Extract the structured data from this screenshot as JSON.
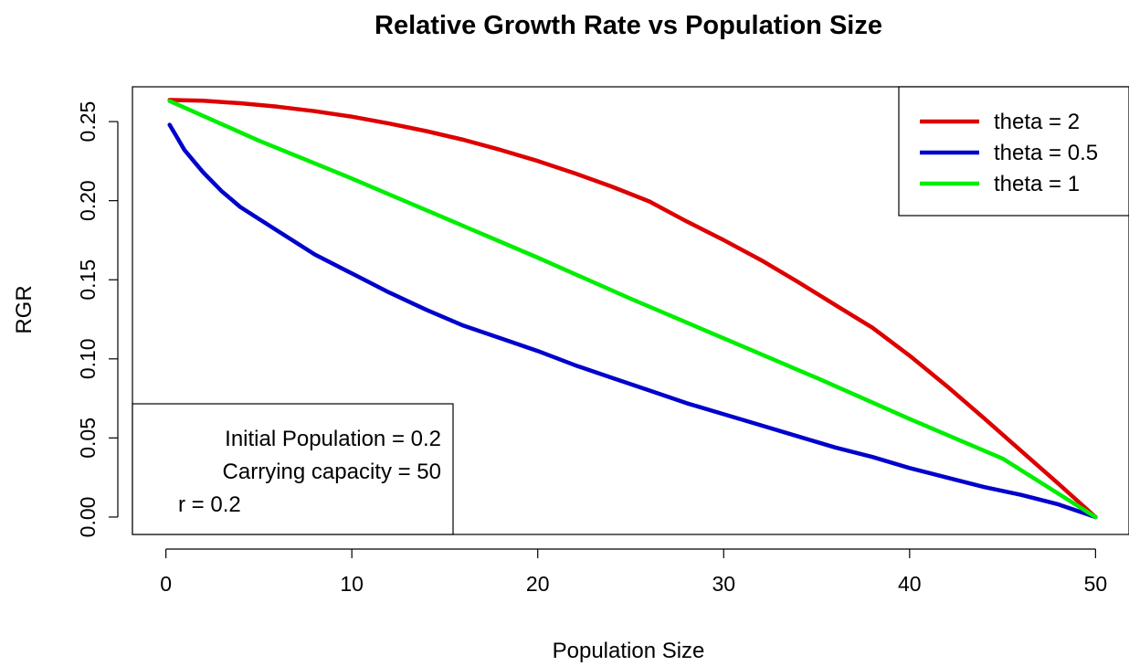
{
  "chart_data": {
    "type": "line",
    "title": "Relative Growth Rate vs Population Size",
    "xlabel": "Population Size",
    "ylabel": "RGR",
    "xlim": [
      -1.8,
      51.8
    ],
    "ylim": [
      -0.011,
      0.272
    ],
    "x_ticks": [
      0,
      10,
      20,
      30,
      40,
      50
    ],
    "x_tick_labels": [
      "0",
      "10",
      "20",
      "30",
      "40",
      "50"
    ],
    "y_ticks": [
      0.0,
      0.05,
      0.1,
      0.15,
      0.2,
      0.25
    ],
    "y_tick_labels": [
      "0.00",
      "0.05",
      "0.10",
      "0.15",
      "0.20",
      "0.25"
    ],
    "grid": false,
    "legend_position": "top-right",
    "series": [
      {
        "name": "theta = 2",
        "color": "#dd0000",
        "x": [
          0.2,
          2,
          4,
          6,
          8,
          10,
          12,
          14,
          16,
          18,
          20,
          22,
          24,
          26,
          28,
          30,
          32,
          34,
          36,
          38,
          40,
          42,
          44,
          46,
          48,
          50
        ],
        "y": [
          0.2637,
          0.2632,
          0.2616,
          0.2594,
          0.2566,
          0.2531,
          0.2488,
          0.244,
          0.2385,
          0.2321,
          0.2251,
          0.2173,
          0.2088,
          0.1995,
          0.1869,
          0.1751,
          0.1625,
          0.1486,
          0.1341,
          0.1197,
          0.102,
          0.0828,
          0.0625,
          0.0418,
          0.0211,
          0.0
        ]
      },
      {
        "name": "theta = 0.5",
        "color": "#0000cc",
        "x": [
          0.2,
          0.5,
          1,
          2,
          3,
          4,
          6,
          8,
          10,
          12,
          14,
          16,
          18,
          20,
          22,
          24,
          26,
          28,
          30,
          32,
          34,
          36,
          38,
          40,
          42,
          44,
          46,
          48,
          50
        ],
        "y": [
          0.248,
          0.242,
          0.232,
          0.218,
          0.206,
          0.196,
          0.181,
          0.166,
          0.154,
          0.142,
          0.131,
          0.121,
          0.113,
          0.105,
          0.096,
          0.088,
          0.08,
          0.072,
          0.065,
          0.058,
          0.051,
          0.044,
          0.038,
          0.031,
          0.025,
          0.019,
          0.014,
          0.008,
          0.0
        ]
      },
      {
        "name": "theta = 1",
        "color": "#00ee00",
        "x": [
          0.2,
          5,
          10,
          15,
          20,
          25,
          30,
          35,
          40,
          45,
          50
        ],
        "y": [
          0.263,
          0.238,
          0.214,
          0.189,
          0.164,
          0.138,
          0.113,
          0.088,
          0.062,
          0.037,
          0.0
        ]
      }
    ],
    "annotation_lines": [
      "Initial Population = 0.2",
      "Carrying capacity = 50",
      "r = 0.2"
    ]
  }
}
